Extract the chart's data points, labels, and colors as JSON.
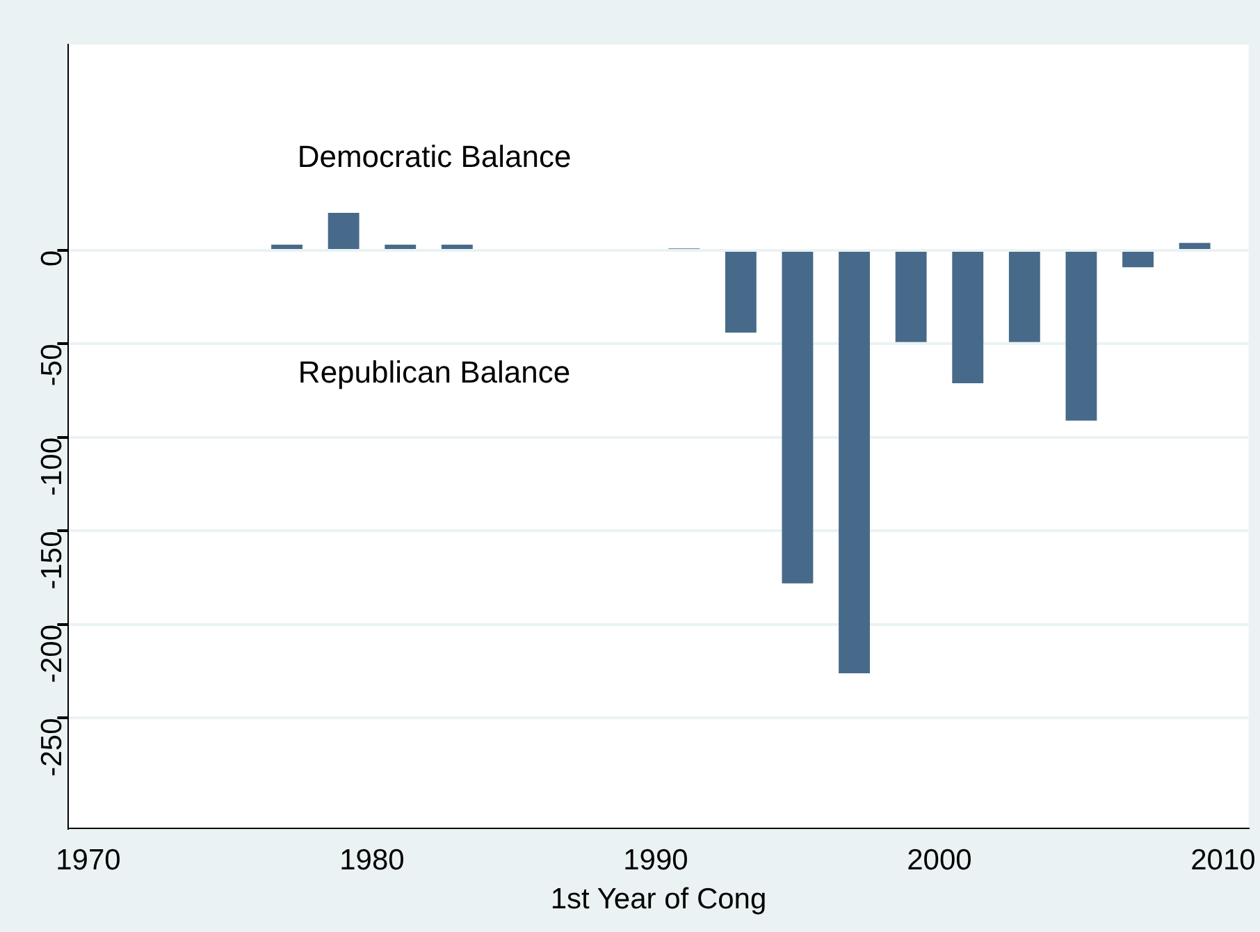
{
  "chart_data": {
    "type": "bar",
    "xlabel": "1st Year of Cong",
    "x": [
      1977,
      1979,
      1981,
      1983,
      1991,
      1993,
      1995,
      1997,
      1999,
      2001,
      2003,
      2005,
      2007,
      2009
    ],
    "values": [
      3,
      20,
      3,
      3,
      1,
      -44,
      -178,
      -226,
      -49,
      -71,
      -49,
      -91,
      -9,
      4
    ],
    "color": "#476a8a",
    "xlim": [
      1969.3,
      2010.9
    ],
    "xticks": [
      1970,
      1980,
      1990,
      2000,
      2010
    ],
    "ylim": [
      -309,
      110
    ],
    "yticks": [
      0,
      -50,
      -100,
      -150,
      -200,
      -250
    ],
    "grid": "y",
    "legend": false,
    "annotations": [
      "Democratic Balance",
      "Republican Balance"
    ]
  }
}
